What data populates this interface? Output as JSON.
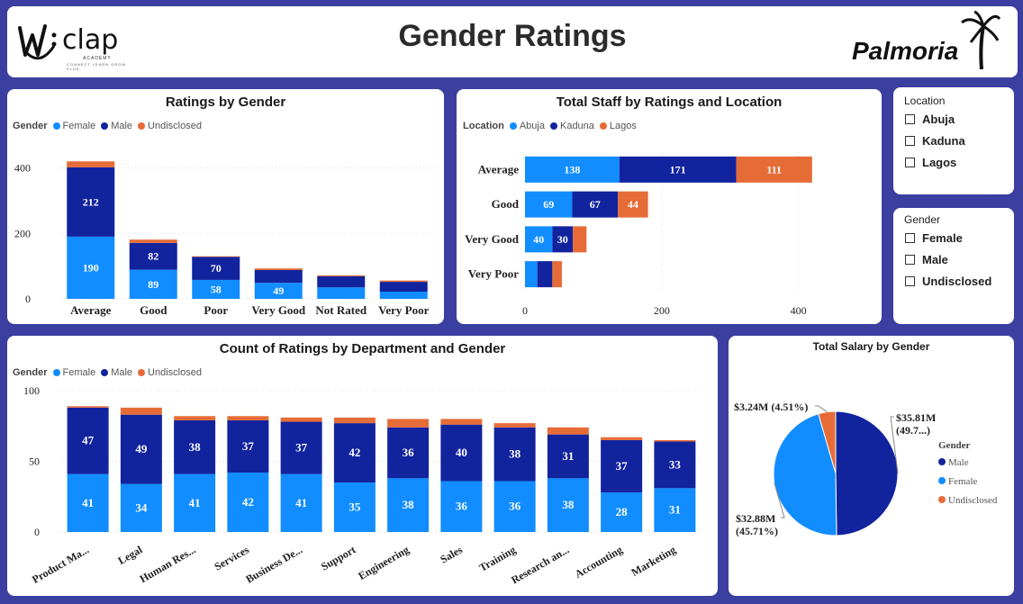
{
  "header": {
    "title": "Gender Ratings",
    "left_logo": {
      "text": "clap",
      "sub": "ACADEMY",
      "tagline": "CONNECT LEARN GROW PLUS"
    },
    "right_logo": {
      "text": "Palmoria"
    }
  },
  "colors": {
    "female": "#118dff",
    "male": "#12239e",
    "undisclosed": "#e66c37",
    "background": "#3a3fa0"
  },
  "slicers": {
    "location": {
      "title": "Location",
      "items": [
        "Abuja",
        "Kaduna",
        "Lagos"
      ]
    },
    "gender": {
      "title": "Gender",
      "items": [
        "Female",
        "Male",
        "Undisclosed"
      ]
    }
  },
  "legends": {
    "gender": {
      "title": "Gender",
      "items": [
        "Female",
        "Male",
        "Undisclosed"
      ]
    },
    "location": {
      "title": "Location",
      "items": [
        "Abuja",
        "Kaduna",
        "Lagos"
      ]
    }
  },
  "chart_data": [
    {
      "id": "ratings_by_gender",
      "type": "bar",
      "stacked": true,
      "title": "Ratings by Gender",
      "categories": [
        "Average",
        "Good",
        "Poor",
        "Very Good",
        "Not Rated",
        "Very Poor"
      ],
      "series": [
        {
          "name": "Female",
          "values": [
            190,
            89,
            58,
            49,
            35,
            22
          ]
        },
        {
          "name": "Male",
          "values": [
            212,
            82,
            70,
            39,
            34,
            30
          ]
        },
        {
          "name": "Undisclosed",
          "values": [
            18,
            10,
            2,
            5,
            3,
            4
          ]
        }
      ],
      "labels": [
        [
          "190",
          "89",
          "58",
          "49",
          "",
          ""
        ],
        [
          "212",
          "82",
          "70",
          "",
          "",
          ""
        ],
        [
          "",
          "",
          "",
          "",
          "",
          ""
        ]
      ],
      "yticks": [
        0,
        200,
        400
      ],
      "ylim": [
        0,
        440
      ],
      "grid": true,
      "legend_position": "top-left"
    },
    {
      "id": "staff_by_rating_location",
      "type": "bar",
      "orientation": "horizontal",
      "stacked": true,
      "title": "Total Staff by Ratings and Location",
      "categories": [
        "Average",
        "Good",
        "Very Good",
        "Very Poor"
      ],
      "series": [
        {
          "name": "Abuja",
          "values": [
            138,
            69,
            40,
            18
          ]
        },
        {
          "name": "Kaduna",
          "values": [
            171,
            67,
            30,
            22
          ]
        },
        {
          "name": "Lagos",
          "values": [
            111,
            44,
            20,
            14
          ]
        }
      ],
      "labels": [
        [
          "138",
          "69",
          "40",
          ""
        ],
        [
          "171",
          "67",
          "30",
          ""
        ],
        [
          "111",
          "44",
          "",
          ""
        ]
      ],
      "xticks": [
        0,
        200,
        400
      ],
      "xlim": [
        0,
        440
      ],
      "grid": true,
      "legend_position": "top-left"
    },
    {
      "id": "ratings_by_department",
      "type": "bar",
      "stacked": true,
      "title": "Count of Ratings by Department and Gender",
      "categories": [
        "Product Ma...",
        "Legal",
        "Human Res...",
        "Services",
        "Business De...",
        "Support",
        "Engineering",
        "Sales",
        "Training",
        "Research an...",
        "Accounting",
        "Marketing"
      ],
      "series": [
        {
          "name": "Female",
          "values": [
            41,
            34,
            41,
            42,
            41,
            35,
            38,
            36,
            36,
            38,
            28,
            31
          ]
        },
        {
          "name": "Male",
          "values": [
            47,
            49,
            38,
            37,
            37,
            42,
            36,
            40,
            38,
            31,
            37,
            33
          ]
        },
        {
          "name": "Undisclosed",
          "values": [
            1,
            5,
            3,
            3,
            3,
            4,
            6,
            4,
            3,
            5,
            2,
            1
          ]
        }
      ],
      "yticks": [
        0,
        50,
        100
      ],
      "ylim": [
        0,
        100
      ],
      "grid": true,
      "legend_position": "top-left"
    },
    {
      "id": "salary_by_gender",
      "type": "pie",
      "title": "Total Salary by Gender",
      "legend_title": "Gender",
      "slices": [
        {
          "name": "Male",
          "value": 35.81,
          "label": "$35.81M\n(49.7...)"
        },
        {
          "name": "Female",
          "value": 32.88,
          "label": "$32.88M\n(45.71%)"
        },
        {
          "name": "Undisclosed",
          "value": 3.24,
          "label": "$3.24M (4.51%)"
        }
      ],
      "legend_position": "right"
    }
  ]
}
